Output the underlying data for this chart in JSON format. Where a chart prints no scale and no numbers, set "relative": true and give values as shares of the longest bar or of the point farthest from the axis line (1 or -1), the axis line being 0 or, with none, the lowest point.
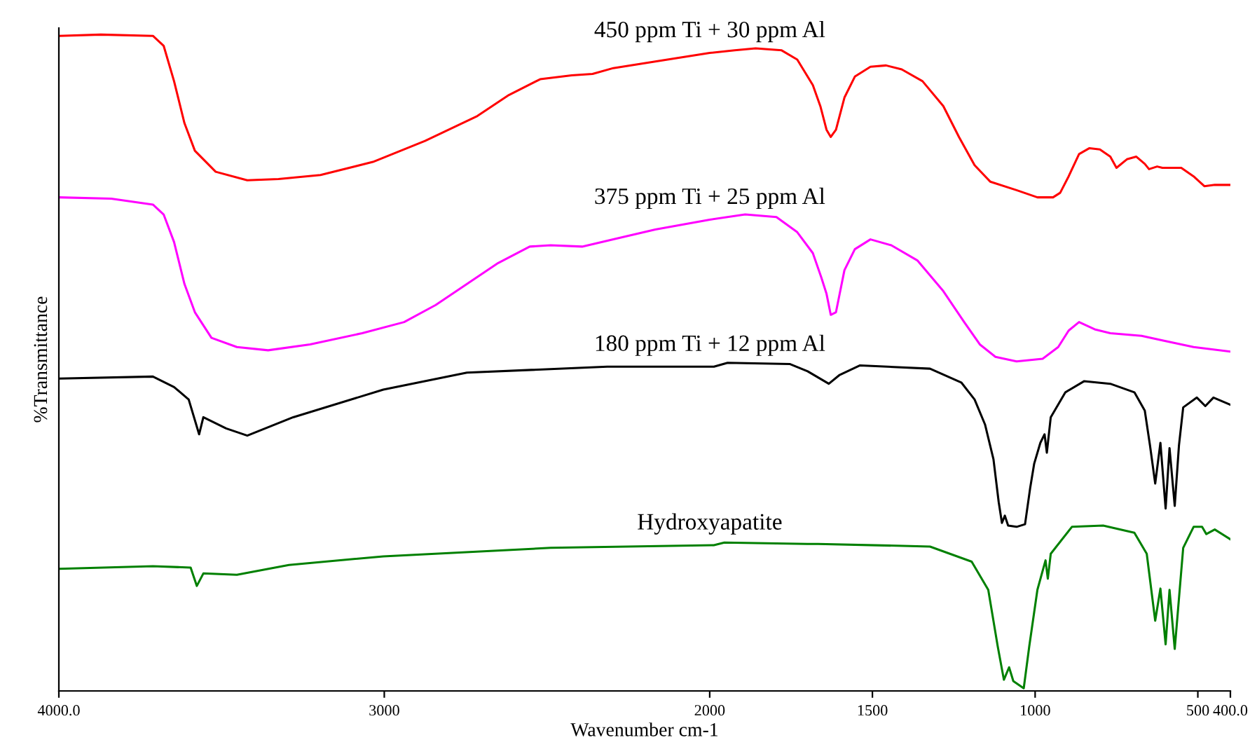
{
  "chart_data": {
    "type": "line",
    "relative": true,
    "xlabel": "Wavenumber cm-1",
    "ylabel": "%Transmittance",
    "xlim": [
      4000,
      400
    ],
    "xticks": [
      {
        "value": 4000,
        "label": "4000.0"
      },
      3000,
      2000,
      1500,
      1000,
      500,
      {
        "value": 400,
        "label": "400.0"
      }
    ],
    "tick_labels": "x",
    "grid": false,
    "legend": false,
    "line_style": "solid",
    "marker": "none",
    "series": [
      {
        "name": "450 ppm Ti + 30 ppm Al",
        "color": "#ff0000",
        "x": [
          4000,
          3871,
          3711,
          3678,
          3646,
          3614,
          3582,
          3518,
          3421,
          3325,
          3196,
          3035,
          2875,
          2714,
          2617,
          2521,
          2424,
          2360,
          2296,
          2167,
          2000,
          1923,
          1859,
          1779,
          1731,
          1683,
          1660,
          1641,
          1628,
          1612,
          1586,
          1554,
          1506,
          1458,
          1410,
          1346,
          1282,
          1234,
          1186,
          1138,
          1057,
          993,
          945,
          923,
          897,
          865,
          833,
          801,
          769,
          750,
          718,
          689,
          663,
          650,
          625,
          609,
          551,
          513,
          480,
          448,
          400
        ],
        "values": [
          0.998,
          1.0,
          0.998,
          0.983,
          0.929,
          0.865,
          0.823,
          0.791,
          0.778,
          0.78,
          0.786,
          0.806,
          0.838,
          0.876,
          0.908,
          0.932,
          0.938,
          0.94,
          0.949,
          0.959,
          0.972,
          0.976,
          0.979,
          0.976,
          0.962,
          0.923,
          0.891,
          0.855,
          0.844,
          0.855,
          0.904,
          0.936,
          0.951,
          0.953,
          0.947,
          0.929,
          0.891,
          0.844,
          0.801,
          0.776,
          0.763,
          0.752,
          0.752,
          0.759,
          0.784,
          0.818,
          0.827,
          0.825,
          0.814,
          0.797,
          0.81,
          0.814,
          0.803,
          0.795,
          0.799,
          0.797,
          0.797,
          0.784,
          0.769,
          0.771,
          0.771
        ]
      },
      {
        "name": "375 ppm Ti + 25 ppm Al",
        "color": "#ff00ff",
        "x": [
          4000,
          3839,
          3711,
          3678,
          3646,
          3614,
          3582,
          3531,
          3453,
          3357,
          3228,
          3068,
          2939,
          2842,
          2746,
          2650,
          2553,
          2489,
          2392,
          2296,
          2167,
          2000,
          1891,
          1795,
          1731,
          1683,
          1657,
          1641,
          1628,
          1612,
          1586,
          1554,
          1506,
          1442,
          1362,
          1282,
          1218,
          1170,
          1122,
          1057,
          977,
          929,
          897,
          865,
          817,
          769,
          673,
          609,
          513,
          400
        ],
        "values": [
          0.752,
          0.75,
          0.741,
          0.726,
          0.684,
          0.62,
          0.577,
          0.538,
          0.524,
          0.519,
          0.528,
          0.545,
          0.562,
          0.588,
          0.62,
          0.652,
          0.677,
          0.679,
          0.677,
          0.688,
          0.703,
          0.718,
          0.726,
          0.722,
          0.699,
          0.667,
          0.63,
          0.605,
          0.573,
          0.577,
          0.641,
          0.673,
          0.688,
          0.679,
          0.656,
          0.609,
          0.562,
          0.528,
          0.509,
          0.502,
          0.506,
          0.524,
          0.549,
          0.562,
          0.551,
          0.545,
          0.541,
          0.534,
          0.524,
          0.517
        ]
      },
      {
        "name": "180 ppm Ti + 12 ppm Al",
        "color": "#000000",
        "x": [
          4000,
          3711,
          3646,
          3601,
          3569,
          3556,
          3486,
          3421,
          3280,
          3003,
          2746,
          2315,
          1987,
          1945,
          1753,
          1699,
          1634,
          1602,
          1538,
          1323,
          1227,
          1186,
          1154,
          1128,
          1112,
          1102,
          1093,
          1083,
          1057,
          1031,
          1015,
          1003,
          984,
          971,
          964,
          952,
          907,
          849,
          769,
          695,
          663,
          647,
          631,
          615,
          599,
          587,
          571,
          558,
          545,
          503,
          477,
          452,
          400
        ],
        "values": [
          0.476,
          0.479,
          0.463,
          0.444,
          0.391,
          0.417,
          0.4,
          0.389,
          0.417,
          0.459,
          0.485,
          0.494,
          0.494,
          0.5,
          0.498,
          0.487,
          0.468,
          0.481,
          0.496,
          0.491,
          0.47,
          0.444,
          0.406,
          0.353,
          0.288,
          0.256,
          0.267,
          0.252,
          0.25,
          0.254,
          0.31,
          0.346,
          0.378,
          0.391,
          0.363,
          0.417,
          0.455,
          0.472,
          0.468,
          0.455,
          0.427,
          0.374,
          0.316,
          0.378,
          0.278,
          0.37,
          0.282,
          0.374,
          0.432,
          0.447,
          0.434,
          0.447,
          0.436
        ]
      },
      {
        "name": "Hydroxyapatite",
        "color": "#008000",
        "x": [
          4000,
          3711,
          3595,
          3576,
          3556,
          3453,
          3293,
          3003,
          2489,
          1987,
          1955,
          1699,
          1667,
          1323,
          1195,
          1144,
          1115,
          1096,
          1080,
          1067,
          1035,
          1018,
          993,
          968,
          961,
          952,
          887,
          791,
          695,
          657,
          631,
          615,
          599,
          587,
          571,
          545,
          513,
          487,
          474,
          448,
          400
        ],
        "values": [
          0.186,
          0.19,
          0.188,
          0.16,
          0.179,
          0.177,
          0.192,
          0.205,
          0.218,
          0.222,
          0.226,
          0.224,
          0.224,
          0.22,
          0.197,
          0.154,
          0.068,
          0.017,
          0.036,
          0.015,
          0.004,
          0.068,
          0.154,
          0.199,
          0.171,
          0.209,
          0.25,
          0.252,
          0.241,
          0.209,
          0.107,
          0.156,
          0.071,
          0.154,
          0.064,
          0.218,
          0.25,
          0.25,
          0.239,
          0.246,
          0.231
        ]
      }
    ]
  }
}
